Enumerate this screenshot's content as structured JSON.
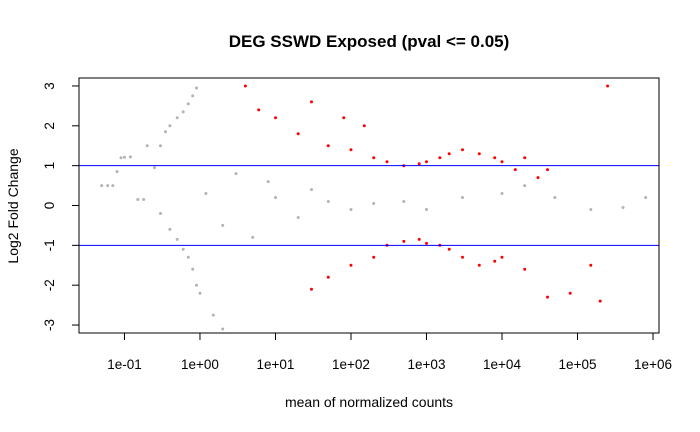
{
  "chart_data": {
    "type": "scatter",
    "title": "DEG SSWD Exposed  (pval <= 0.05)",
    "xlabel": "mean of normalized counts",
    "ylabel": "Log2 Fold Change",
    "x_scale": "log10",
    "xlim": [
      0.025,
      1200000
    ],
    "ylim": [
      -3.2,
      3.2
    ],
    "x_ticks": [
      0.1,
      1,
      10,
      100,
      1000,
      10000,
      100000,
      1000000
    ],
    "x_tick_labels": [
      "1e-01",
      "1e+00",
      "1e+01",
      "1e+02",
      "1e+03",
      "1e+04",
      "1e+05",
      "1e+06"
    ],
    "y_ticks": [
      -3,
      -2,
      -1,
      0,
      1,
      2,
      3
    ],
    "y_tick_labels": [
      "-3",
      "-2",
      "-1",
      "0",
      "1",
      "2",
      "3"
    ],
    "reference_lines": [
      1,
      -1
    ],
    "colors": {
      "not_significant": "#b3b3b3",
      "significant": "#ff0000",
      "reference_line": "#0000ff",
      "frame": "#000000"
    },
    "series": [
      {
        "color": "#b3b3b3",
        "points": [
          [
            0.05,
            0.5
          ],
          [
            0.06,
            0.5
          ],
          [
            0.07,
            0.5
          ],
          [
            0.08,
            0.85
          ],
          [
            0.09,
            1.2
          ],
          [
            0.1,
            1.21
          ],
          [
            0.12,
            1.22
          ],
          [
            0.15,
            0.15
          ],
          [
            0.18,
            0.15
          ],
          [
            0.2,
            1.5
          ],
          [
            0.25,
            0.95
          ],
          [
            0.3,
            1.5
          ],
          [
            0.35,
            1.85
          ],
          [
            0.4,
            2.0
          ],
          [
            0.5,
            2.2
          ],
          [
            0.6,
            2.35
          ],
          [
            0.7,
            2.55
          ],
          [
            0.8,
            2.75
          ],
          [
            0.9,
            2.95
          ],
          [
            0.3,
            -0.2
          ],
          [
            0.4,
            -0.6
          ],
          [
            0.5,
            -0.85
          ],
          [
            0.6,
            -1.1
          ],
          [
            0.7,
            -1.3
          ],
          [
            0.8,
            -1.6
          ],
          [
            0.9,
            -2.0
          ],
          [
            1.0,
            -2.2
          ],
          [
            1.5,
            -2.75
          ],
          [
            2.0,
            -3.1
          ],
          [
            1.2,
            0.3
          ],
          [
            2.0,
            -0.5
          ],
          [
            3.0,
            0.8
          ],
          [
            5.0,
            -0.8
          ],
          [
            8.0,
            0.6
          ],
          [
            10,
            0.2
          ],
          [
            20,
            -0.3
          ],
          [
            30,
            0.4
          ],
          [
            50,
            0.1
          ],
          [
            100,
            -0.1
          ],
          [
            200,
            0.05
          ],
          [
            500,
            0.1
          ],
          [
            1000,
            -0.1
          ],
          [
            3000,
            0.2
          ],
          [
            10000,
            0.3
          ],
          [
            20000,
            0.5
          ],
          [
            50000,
            0.2
          ],
          [
            150000,
            -0.1
          ],
          [
            400000,
            -0.05
          ],
          [
            800000,
            0.2
          ]
        ]
      },
      {
        "color": "#ff0000",
        "points": [
          [
            4,
            3.0
          ],
          [
            6,
            2.4
          ],
          [
            10,
            2.2
          ],
          [
            20,
            1.8
          ],
          [
            30,
            2.6
          ],
          [
            50,
            1.5
          ],
          [
            80,
            2.2
          ],
          [
            100,
            1.4
          ],
          [
            150,
            2.0
          ],
          [
            200,
            1.2
          ],
          [
            300,
            1.1
          ],
          [
            500,
            1.0
          ],
          [
            800,
            1.05
          ],
          [
            1000,
            1.1
          ],
          [
            1500,
            1.2
          ],
          [
            2000,
            1.3
          ],
          [
            3000,
            1.4
          ],
          [
            5000,
            1.3
          ],
          [
            8000,
            1.2
          ],
          [
            10000,
            1.1
          ],
          [
            15000,
            0.9
          ],
          [
            20000,
            1.2
          ],
          [
            30000,
            0.7
          ],
          [
            40000,
            0.9
          ],
          [
            250000,
            3.0
          ],
          [
            30,
            -2.1
          ],
          [
            50,
            -1.8
          ],
          [
            100,
            -1.5
          ],
          [
            200,
            -1.3
          ],
          [
            300,
            -1.0
          ],
          [
            500,
            -0.9
          ],
          [
            800,
            -0.85
          ],
          [
            1000,
            -0.95
          ],
          [
            1500,
            -1.0
          ],
          [
            2000,
            -1.1
          ],
          [
            3000,
            -1.3
          ],
          [
            5000,
            -1.5
          ],
          [
            8000,
            -1.4
          ],
          [
            10000,
            -1.3
          ],
          [
            20000,
            -1.6
          ],
          [
            40000,
            -2.3
          ],
          [
            80000,
            -2.2
          ],
          [
            150000,
            -1.5
          ],
          [
            200000,
            -2.4
          ]
        ]
      }
    ]
  }
}
